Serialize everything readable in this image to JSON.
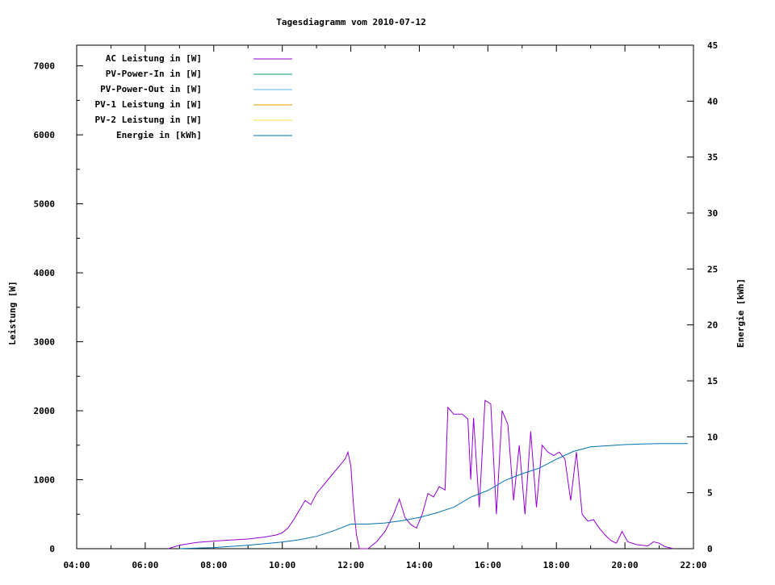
{
  "chart_data": {
    "type": "line",
    "title": "Tagesdiagramm vom 2010-07-12",
    "ylabel": "Leistung [W]",
    "y2label": "Energie [kWh]",
    "xlim": [
      "04:00",
      "22:00"
    ],
    "ylim": [
      0,
      7300
    ],
    "y2lim": [
      0,
      45
    ],
    "x_ticks": [
      "04:00",
      "06:00",
      "08:00",
      "10:00",
      "12:00",
      "14:00",
      "16:00",
      "18:00",
      "20:00",
      "22:00"
    ],
    "y_ticks": [
      0,
      1000,
      2000,
      3000,
      4000,
      5000,
      6000,
      7000
    ],
    "y2_ticks": [
      0,
      5,
      10,
      15,
      20,
      25,
      30,
      35,
      40,
      45
    ],
    "grid": false,
    "legend_position": "top-left",
    "series": [
      {
        "name": "AC Leistung in [W]",
        "axis": "left",
        "color": "#9400d3",
        "points": [
          [
            "06:40",
            0
          ],
          [
            "07:00",
            50
          ],
          [
            "07:30",
            90
          ],
          [
            "08:00",
            110
          ],
          [
            "08:30",
            125
          ],
          [
            "09:00",
            140
          ],
          [
            "09:30",
            170
          ],
          [
            "09:50",
            200
          ],
          [
            "10:00",
            230
          ],
          [
            "10:10",
            300
          ],
          [
            "10:20",
            420
          ],
          [
            "10:30",
            560
          ],
          [
            "10:40",
            700
          ],
          [
            "10:50",
            640
          ],
          [
            "11:00",
            800
          ],
          [
            "11:10",
            900
          ],
          [
            "11:20",
            1000
          ],
          [
            "11:30",
            1100
          ],
          [
            "11:40",
            1200
          ],
          [
            "11:50",
            1300
          ],
          [
            "11:55",
            1400
          ],
          [
            "12:00",
            1200
          ],
          [
            "12:05",
            600
          ],
          [
            "12:10",
            200
          ],
          [
            "12:15",
            0
          ],
          [
            "12:30",
            0
          ],
          [
            "12:45",
            100
          ],
          [
            "13:00",
            250
          ],
          [
            "13:15",
            500
          ],
          [
            "13:25",
            720
          ],
          [
            "13:35",
            450
          ],
          [
            "13:45",
            350
          ],
          [
            "13:55",
            300
          ],
          [
            "14:05",
            500
          ],
          [
            "14:15",
            800
          ],
          [
            "14:25",
            750
          ],
          [
            "14:35",
            900
          ],
          [
            "14:45",
            850
          ],
          [
            "14:50",
            2050
          ],
          [
            "15:00",
            1950
          ],
          [
            "15:15",
            1950
          ],
          [
            "15:25",
            1880
          ],
          [
            "15:30",
            1000
          ],
          [
            "15:35",
            1900
          ],
          [
            "15:45",
            600
          ],
          [
            "15:55",
            2150
          ],
          [
            "16:05",
            2100
          ],
          [
            "16:15",
            500
          ],
          [
            "16:25",
            2000
          ],
          [
            "16:35",
            1800
          ],
          [
            "16:45",
            700
          ],
          [
            "16:55",
            1500
          ],
          [
            "17:05",
            500
          ],
          [
            "17:15",
            1700
          ],
          [
            "17:25",
            600
          ],
          [
            "17:35",
            1500
          ],
          [
            "17:45",
            1400
          ],
          [
            "17:55",
            1350
          ],
          [
            "18:05",
            1400
          ],
          [
            "18:15",
            1300
          ],
          [
            "18:25",
            700
          ],
          [
            "18:35",
            1400
          ],
          [
            "18:45",
            500
          ],
          [
            "18:55",
            400
          ],
          [
            "19:05",
            420
          ],
          [
            "19:15",
            300
          ],
          [
            "19:25",
            200
          ],
          [
            "19:35",
            120
          ],
          [
            "19:45",
            80
          ],
          [
            "19:55",
            250
          ],
          [
            "20:05",
            100
          ],
          [
            "20:20",
            60
          ],
          [
            "20:40",
            40
          ],
          [
            "20:50",
            100
          ],
          [
            "21:00",
            80
          ],
          [
            "21:10",
            30
          ],
          [
            "21:25",
            0
          ]
        ]
      },
      {
        "name": "PV-Power-In in [W]",
        "axis": "left",
        "color": "#009e73",
        "points": []
      },
      {
        "name": "PV-Power-Out in [W]",
        "axis": "left",
        "color": "#56b4e9",
        "points": []
      },
      {
        "name": "PV-1 Leistung in [W]",
        "axis": "left",
        "color": "#e69f00",
        "points": []
      },
      {
        "name": "PV-2 Leistung in [W]",
        "axis": "left",
        "color": "#f0e442",
        "points": []
      },
      {
        "name": "Energie in [kWh]",
        "axis": "right",
        "color": "#0072b2",
        "points": [
          [
            "07:00",
            0
          ],
          [
            "08:00",
            0.1
          ],
          [
            "09:00",
            0.3
          ],
          [
            "10:00",
            0.6
          ],
          [
            "10:30",
            0.8
          ],
          [
            "11:00",
            1.1
          ],
          [
            "11:30",
            1.6
          ],
          [
            "12:00",
            2.2
          ],
          [
            "12:30",
            2.2
          ],
          [
            "13:00",
            2.3
          ],
          [
            "13:30",
            2.5
          ],
          [
            "14:00",
            2.8
          ],
          [
            "14:30",
            3.2
          ],
          [
            "15:00",
            3.7
          ],
          [
            "15:30",
            4.6
          ],
          [
            "16:00",
            5.2
          ],
          [
            "16:30",
            6.1
          ],
          [
            "17:00",
            6.7
          ],
          [
            "17:30",
            7.2
          ],
          [
            "18:00",
            8.0
          ],
          [
            "18:30",
            8.7
          ],
          [
            "19:00",
            9.1
          ],
          [
            "19:30",
            9.2
          ],
          [
            "20:00",
            9.3
          ],
          [
            "20:30",
            9.35
          ],
          [
            "21:00",
            9.4
          ],
          [
            "21:30",
            9.4
          ],
          [
            "21:50",
            9.4
          ]
        ]
      }
    ]
  }
}
